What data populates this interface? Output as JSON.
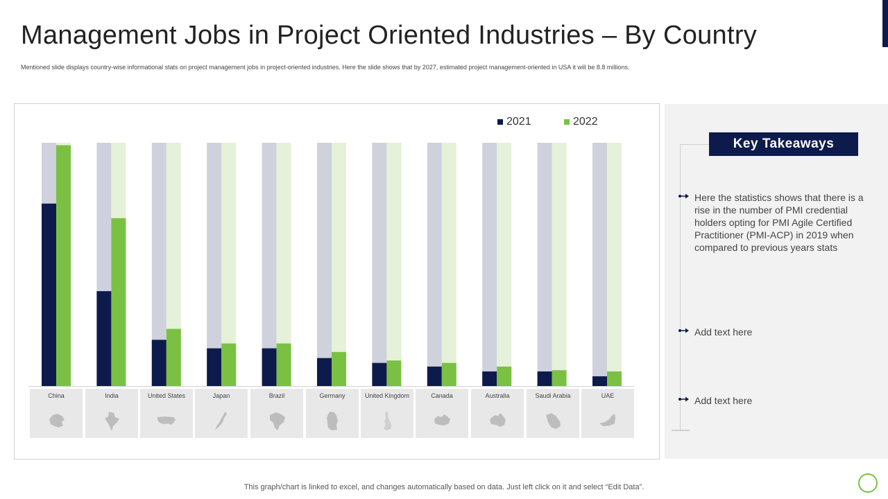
{
  "page": {
    "title": "Management Jobs in Project Oriented Industries – By Country",
    "subtitle": "Mentioned slide displays country-wise informational stats on project management jobs in project-oriented industries. Here the slide shows that by 2027, estimated project management-oriented in USA it will be 8.8 millions.",
    "footer": "This graph/chart is linked to excel, and changes automatically based on data. Just left click on it and select “Edit Data”."
  },
  "colors": {
    "series_2021": "#0d1b4c",
    "series_2022": "#7ac143",
    "background_2021": "#cfd1dc",
    "background_2022": "#e6f1d9",
    "accent": "#0d1b4c"
  },
  "chart_data": {
    "type": "bar",
    "title": "",
    "xlabel": "",
    "ylabel": "",
    "ylim": [
      0,
      100
    ],
    "grid": false,
    "legend_position": "top-right",
    "categories": [
      "China",
      "India",
      "United States",
      "Japan",
      "Brazil",
      "Germany",
      "United Kingdom",
      "Canada",
      "Australia",
      "Saudi Arabia",
      "UAE"
    ],
    "series": [
      {
        "name": "2021",
        "values": [
          75,
          39,
          19,
          15.5,
          15.5,
          11.5,
          9.5,
          8,
          6,
          6,
          4
        ]
      },
      {
        "name": "2022",
        "values": [
          99,
          69,
          23.5,
          17.5,
          17.5,
          14,
          10.5,
          9.5,
          8,
          6.5,
          6
        ]
      }
    ]
  },
  "countries": [
    {
      "name": "China",
      "icon": "china-map-icon"
    },
    {
      "name": "India",
      "icon": "india-map-icon"
    },
    {
      "name": "United States",
      "icon": "united-states-map-icon"
    },
    {
      "name": "Japan",
      "icon": "japan-map-icon"
    },
    {
      "name": "Brazil",
      "icon": "brazil-map-icon"
    },
    {
      "name": "Germany",
      "icon": "germany-map-icon"
    },
    {
      "name": "United Kingdom",
      "icon": "united-kingdom-map-icon"
    },
    {
      "name": "Canada",
      "icon": "canada-map-icon"
    },
    {
      "name": "Australia",
      "icon": "australia-map-icon"
    },
    {
      "name": "Saudi Arabia",
      "icon": "saudi-arabia-map-icon"
    },
    {
      "name": "UAE",
      "icon": "uae-map-icon"
    }
  ],
  "takeaways": {
    "header": "Key Takeaways",
    "items": [
      {
        "text": "Here the statistics shows that there is a rise in the number of PMI credential holders opting for PMI Agile Certified Practitioner (PMI-ACP) in 2019 when compared to previous years stats",
        "icon": "arrow-right-icon"
      },
      {
        "text": "Add text here",
        "icon": "arrow-right-icon"
      },
      {
        "text": "Add text here",
        "icon": "arrow-right-icon"
      }
    ]
  }
}
